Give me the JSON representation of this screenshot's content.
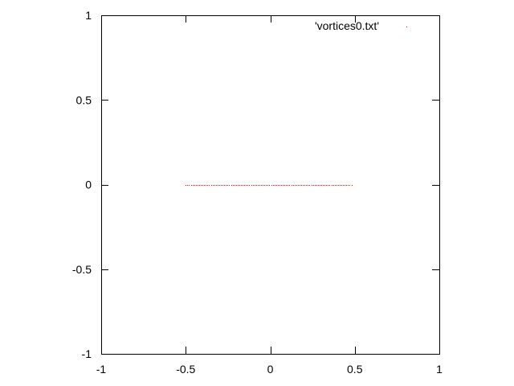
{
  "chart_data": {
    "type": "scatter",
    "title": "",
    "xlabel": "",
    "ylabel": "",
    "xlim": [
      -1,
      1
    ],
    "ylim": [
      -1,
      1
    ],
    "x_ticks": [
      -1,
      -0.5,
      0,
      0.5,
      1
    ],
    "x_tick_labels": [
      "-1",
      "-0.5",
      "0",
      "0.5",
      "1"
    ],
    "y_ticks": [
      -1,
      -0.5,
      0,
      0.5,
      1
    ],
    "y_tick_labels": [
      "-1",
      "-0.5",
      "0",
      "0.5",
      "1"
    ],
    "grid": false,
    "legend_position": "top-right",
    "series": [
      {
        "name": "'vortices0.txt'",
        "color": "#ff0000",
        "x_start": -0.5,
        "x_end": 0.48,
        "y": 0,
        "point_count": 100
      }
    ]
  }
}
